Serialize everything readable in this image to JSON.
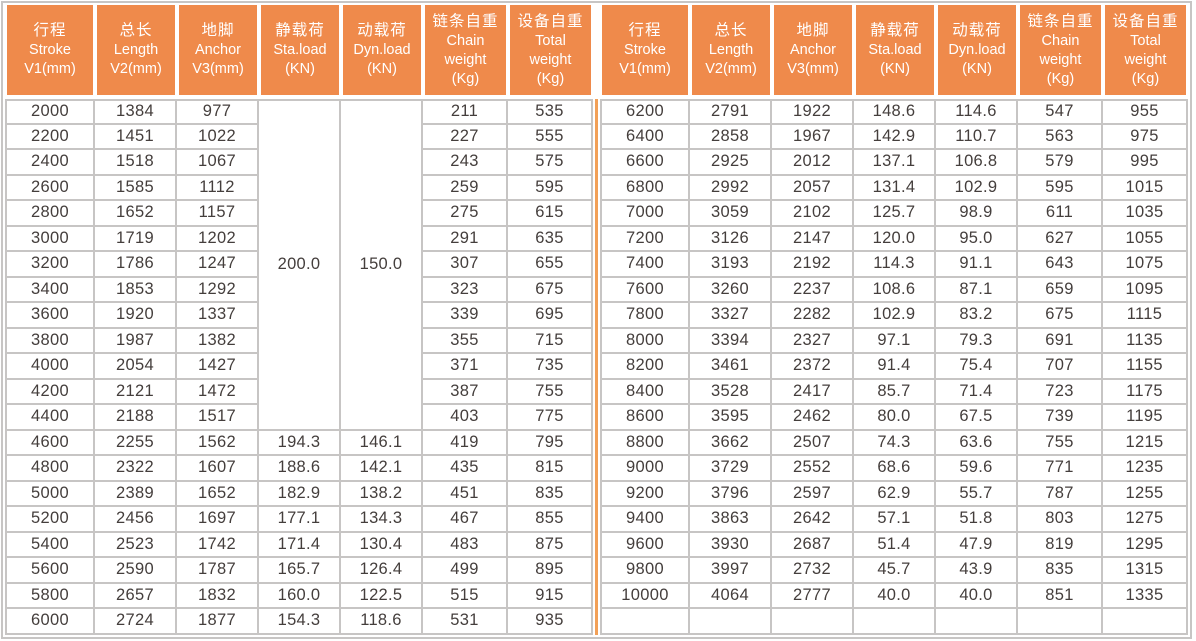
{
  "colors": {
    "header_bg": "#EF8A4B",
    "header_text": "#FFFFFF",
    "divider": "#F2A057",
    "grid_line": "#C7C5C4",
    "cell_text": "#443E3C",
    "background": "#FFFFFF"
  },
  "table": {
    "columns": [
      {
        "key": "stroke",
        "lines": [
          "行程",
          "Stroke",
          "V1(mm)"
        ]
      },
      {
        "key": "length",
        "lines": [
          "总长",
          "Length",
          "V2(mm)"
        ]
      },
      {
        "key": "anchor",
        "lines": [
          "地脚",
          "Anchor",
          "V3(mm)"
        ]
      },
      {
        "key": "sta-load",
        "lines": [
          "静载荷",
          "Sta.load",
          "(KN)"
        ]
      },
      {
        "key": "dyn-load",
        "lines": [
          "动载荷",
          "Dyn.load",
          "(KN)"
        ]
      },
      {
        "key": "chain-weight",
        "lines": [
          "链条自重",
          "Chain",
          "weight",
          "(Kg)"
        ]
      },
      {
        "key": "total-weight",
        "lines": [
          "设备自重",
          "Total",
          "weight",
          "(Kg)"
        ]
      }
    ],
    "left": {
      "merges": [
        {
          "row": 0,
          "col": 3,
          "rowspan": 13
        },
        {
          "row": 0,
          "col": 4,
          "rowspan": 13
        }
      ],
      "rows": [
        [
          "2000",
          "1384",
          "977",
          "200.0",
          "150.0",
          "211",
          "535"
        ],
        [
          "2200",
          "1451",
          "1022",
          null,
          null,
          "227",
          "555"
        ],
        [
          "2400",
          "1518",
          "1067",
          null,
          null,
          "243",
          "575"
        ],
        [
          "2600",
          "1585",
          "1112",
          null,
          null,
          "259",
          "595"
        ],
        [
          "2800",
          "1652",
          "1157",
          null,
          null,
          "275",
          "615"
        ],
        [
          "3000",
          "1719",
          "1202",
          null,
          null,
          "291",
          "635"
        ],
        [
          "3200",
          "1786",
          "1247",
          null,
          null,
          "307",
          "655"
        ],
        [
          "3400",
          "1853",
          "1292",
          null,
          null,
          "323",
          "675"
        ],
        [
          "3600",
          "1920",
          "1337",
          null,
          null,
          "339",
          "695"
        ],
        [
          "3800",
          "1987",
          "1382",
          null,
          null,
          "355",
          "715"
        ],
        [
          "4000",
          "2054",
          "1427",
          null,
          null,
          "371",
          "735"
        ],
        [
          "4200",
          "2121",
          "1472",
          null,
          null,
          "387",
          "755"
        ],
        [
          "4400",
          "2188",
          "1517",
          null,
          null,
          "403",
          "775"
        ],
        [
          "4600",
          "2255",
          "1562",
          "194.3",
          "146.1",
          "419",
          "795"
        ],
        [
          "4800",
          "2322",
          "1607",
          "188.6",
          "142.1",
          "435",
          "815"
        ],
        [
          "5000",
          "2389",
          "1652",
          "182.9",
          "138.2",
          "451",
          "835"
        ],
        [
          "5200",
          "2456",
          "1697",
          "177.1",
          "134.3",
          "467",
          "855"
        ],
        [
          "5400",
          "2523",
          "1742",
          "171.4",
          "130.4",
          "483",
          "875"
        ],
        [
          "5600",
          "2590",
          "1787",
          "165.7",
          "126.4",
          "499",
          "895"
        ],
        [
          "5800",
          "2657",
          "1832",
          "160.0",
          "122.5",
          "515",
          "915"
        ],
        [
          "6000",
          "2724",
          "1877",
          "154.3",
          "118.6",
          "531",
          "935"
        ]
      ]
    },
    "right": {
      "merges": [],
      "rows": [
        [
          "6200",
          "2791",
          "1922",
          "148.6",
          "114.6",
          "547",
          "955"
        ],
        [
          "6400",
          "2858",
          "1967",
          "142.9",
          "110.7",
          "563",
          "975"
        ],
        [
          "6600",
          "2925",
          "2012",
          "137.1",
          "106.8",
          "579",
          "995"
        ],
        [
          "6800",
          "2992",
          "2057",
          "131.4",
          "102.9",
          "595",
          "1015"
        ],
        [
          "7000",
          "3059",
          "2102",
          "125.7",
          "98.9",
          "611",
          "1035"
        ],
        [
          "7200",
          "3126",
          "2147",
          "120.0",
          "95.0",
          "627",
          "1055"
        ],
        [
          "7400",
          "3193",
          "2192",
          "114.3",
          "91.1",
          "643",
          "1075"
        ],
        [
          "7600",
          "3260",
          "2237",
          "108.6",
          "87.1",
          "659",
          "1095"
        ],
        [
          "7800",
          "3327",
          "2282",
          "102.9",
          "83.2",
          "675",
          "1115"
        ],
        [
          "8000",
          "3394",
          "2327",
          "97.1",
          "79.3",
          "691",
          "1135"
        ],
        [
          "8200",
          "3461",
          "2372",
          "91.4",
          "75.4",
          "707",
          "1155"
        ],
        [
          "8400",
          "3528",
          "2417",
          "85.7",
          "71.4",
          "723",
          "1175"
        ],
        [
          "8600",
          "3595",
          "2462",
          "80.0",
          "67.5",
          "739",
          "1195"
        ],
        [
          "8800",
          "3662",
          "2507",
          "74.3",
          "63.6",
          "755",
          "1215"
        ],
        [
          "9000",
          "3729",
          "2552",
          "68.6",
          "59.6",
          "771",
          "1235"
        ],
        [
          "9200",
          "3796",
          "2597",
          "62.9",
          "55.7",
          "787",
          "1255"
        ],
        [
          "9400",
          "3863",
          "2642",
          "57.1",
          "51.8",
          "803",
          "1275"
        ],
        [
          "9600",
          "3930",
          "2687",
          "51.4",
          "47.9",
          "819",
          "1295"
        ],
        [
          "9800",
          "3997",
          "2732",
          "45.7",
          "43.9",
          "835",
          "1315"
        ],
        [
          "10000",
          "4064",
          "2777",
          "40.0",
          "40.0",
          "851",
          "1335"
        ],
        [
          "",
          "",
          "",
          "",
          "",
          "",
          ""
        ]
      ]
    }
  }
}
